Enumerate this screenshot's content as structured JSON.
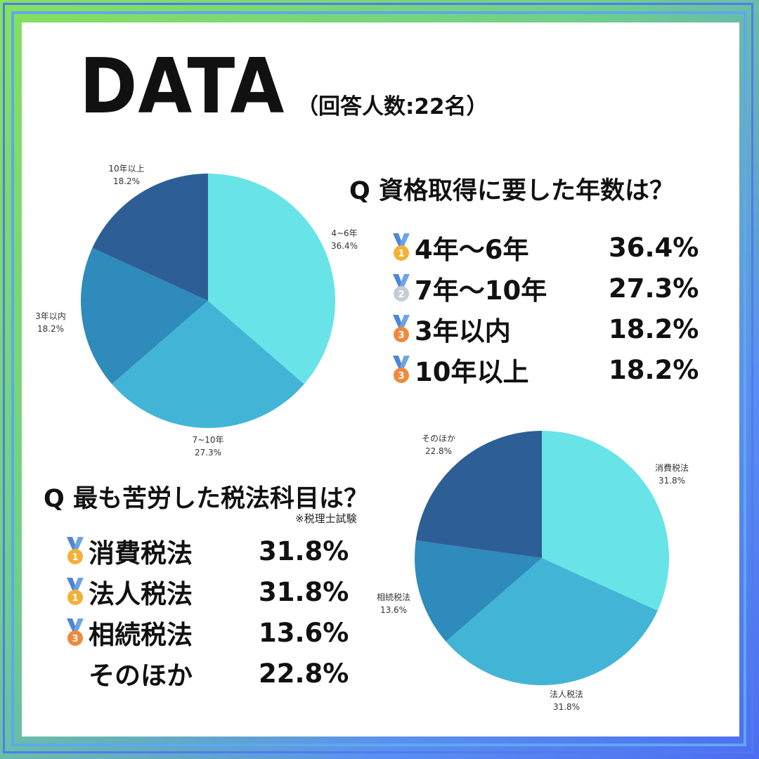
{
  "header": {
    "title": "DATA",
    "respondents": "（回答人数:22名）"
  },
  "colors": {
    "slice1": "#68e3e8",
    "slice2": "#42b5d6",
    "slice3": "#2e8bbc",
    "slice4": "#2d5f96",
    "ribbon": "#4f86d6",
    "gold": "#f3b135",
    "silver": "#c5ccd3",
    "bronze": "#ef8a3c"
  },
  "q1": {
    "question": "Q 資格取得に要した年数は？",
    "ranking": [
      {
        "medal": "gold-medal",
        "num": "1",
        "label": "4年〜6年",
        "pct": "36.4%"
      },
      {
        "medal": "silver-medal",
        "num": "2",
        "label": "7年〜10年",
        "pct": "27.3%"
      },
      {
        "medal": "bronze-medal",
        "num": "3",
        "label": "3年以内",
        "pct": "18.2%"
      },
      {
        "medal": "bronze-medal",
        "num": "3",
        "label": "10年以上",
        "pct": "18.2%"
      }
    ]
  },
  "q2": {
    "question": "Q 最も苦労した税法科目は？",
    "note": "※税理士試験",
    "ranking": [
      {
        "medal": "gold-medal",
        "num": "1",
        "label": "消費税法",
        "pct": "31.8%"
      },
      {
        "medal": "gold-medal",
        "num": "1",
        "label": "法人税法",
        "pct": "31.8%"
      },
      {
        "medal": "bronze-medal",
        "num": "3",
        "label": "相続税法",
        "pct": "13.6%"
      },
      {
        "medal": "none",
        "num": "",
        "label": "そのほか",
        "pct": "22.8%"
      }
    ]
  },
  "chart_data": [
    {
      "type": "pie",
      "slices": [
        {
          "label": "4~6年",
          "value": 36.4,
          "value_label": "36.4%"
        },
        {
          "label": "7~10年",
          "value": 27.3,
          "value_label": "27.3%"
        },
        {
          "label": "3年以内",
          "value": 18.2,
          "value_label": "18.2%"
        },
        {
          "label": "10年以上",
          "value": 18.2,
          "value_label": "18.2%"
        }
      ]
    },
    {
      "type": "pie",
      "slices": [
        {
          "label": "消費税法",
          "value": 31.8,
          "value_label": "31.8%"
        },
        {
          "label": "法人税法",
          "value": 31.8,
          "value_label": "31.8%"
        },
        {
          "label": "相続税法",
          "value": 13.6,
          "value_label": "13.6%"
        },
        {
          "label": "そのほか",
          "value": 22.8,
          "value_label": "22.8%"
        }
      ]
    }
  ]
}
